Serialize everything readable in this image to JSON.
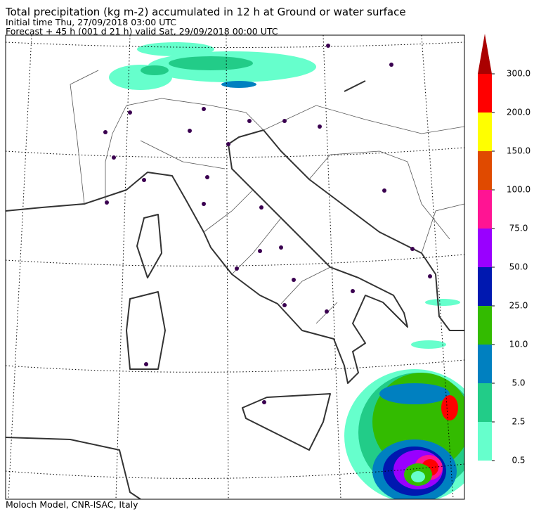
{
  "header": {
    "title": "Total precipitation (kg m-2) accumulated in  12 h at Ground or water surface",
    "line1": "Initial time  Thu, 27/09/2018  03:00 UTC",
    "line2": "Forecast  +  45 h  (001 d 21 h)  valid Sat, 29/09/2018 00:00 UTC"
  },
  "colorbar": {
    "ticks": [
      0.5,
      2.5,
      {
        "value": 5,
        "label": "5.0"
      },
      {
        "value": 10,
        "label": "10.0"
      },
      {
        "value": 25,
        "label": "25.0"
      },
      {
        "value": 50,
        "label": "50.0"
      },
      {
        "value": 75,
        "label": "75.0"
      },
      {
        "value": 100,
        "label": "100.0"
      },
      {
        "value": 150,
        "label": "150.0"
      },
      {
        "value": 200,
        "label": "200.0"
      },
      {
        "value": 300,
        "label": "300.0"
      }
    ],
    "colors": [
      "#66ffcc",
      "#22cc88",
      "#0080c0",
      "#33bb00",
      "#0018b0",
      "#9900ff",
      "#ff1493",
      "#e04a00",
      "#ffff00",
      "#ff0000"
    ],
    "extend_color": "#aa0000"
  },
  "footer": "Moloch Model, CNR-ISAC, Italy"
}
